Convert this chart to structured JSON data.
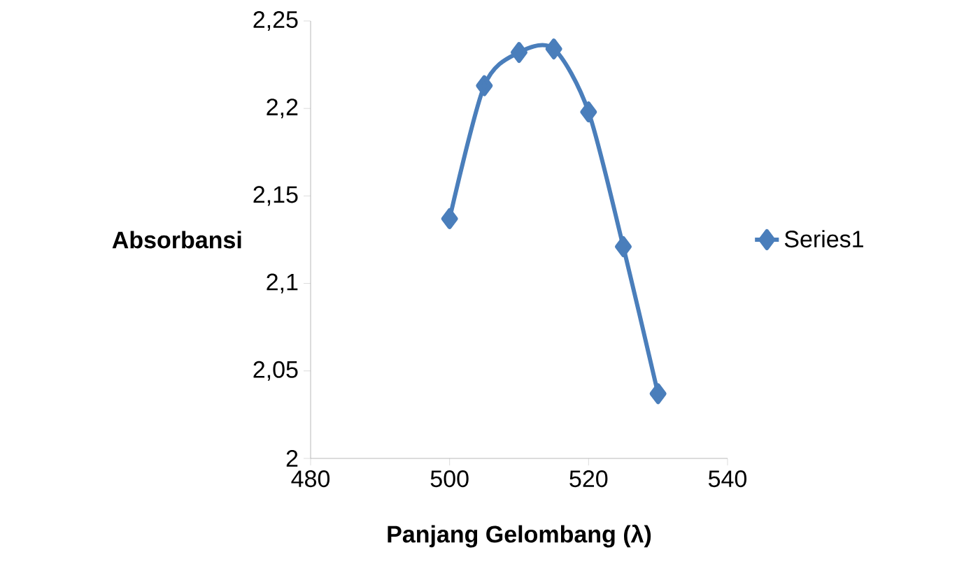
{
  "chart_data": {
    "type": "line",
    "xlabel": "Panjang Gelombang (λ)",
    "ylabel": "Absorbansi",
    "xlim": [
      480,
      540
    ],
    "xticks": [
      480,
      500,
      520,
      540
    ],
    "ylim": [
      2,
      2.25
    ],
    "yticks": [
      {
        "value": 2,
        "label": "2"
      },
      {
        "value": 2.05,
        "label": "2,05"
      },
      {
        "value": 2.1,
        "label": "2,1"
      },
      {
        "value": 2.15,
        "label": "2,15"
      },
      {
        "value": 2.2,
        "label": "2,2"
      },
      {
        "value": 2.25,
        "label": "2,25"
      }
    ],
    "legend": "right",
    "marker": "diamond",
    "grid": false,
    "series": [
      {
        "name": "Series1",
        "color": "#4a7ebb",
        "x": [
          500,
          505,
          510,
          515,
          520,
          525,
          530
        ],
        "values": [
          2.137,
          2.213,
          2.232,
          2.234,
          2.198,
          2.121,
          2.037
        ]
      }
    ]
  }
}
